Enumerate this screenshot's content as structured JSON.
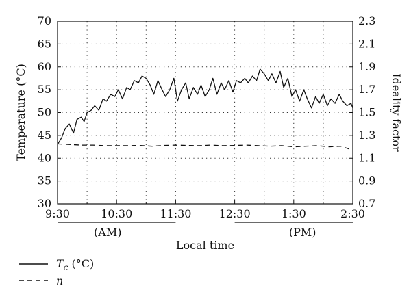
{
  "chart_data": {
    "type": "line",
    "xlabel": "Local time",
    "ylabel_left": "Temperature (°C)",
    "ylabel_right": "Ideality factor",
    "x_ticks": [
      "9:30",
      "10:30",
      "11:30",
      "12:30",
      "1:30",
      "2:30"
    ],
    "period_labels": [
      "(AM)",
      "(PM)"
    ],
    "ylim_left": [
      30,
      70
    ],
    "y_ticks_left": [
      "30",
      "35",
      "40",
      "45",
      "50",
      "55",
      "60",
      "65",
      "70"
    ],
    "ylim_right": [
      0.7,
      2.3
    ],
    "y_ticks_right": [
      "0.7",
      "0.9",
      "1.1",
      "1.3",
      "1.5",
      "1.7",
      "1.9",
      "2.1",
      "2.3"
    ],
    "grid": "dotted",
    "legend_position": "bottom-left",
    "x_unit": "hours after 9:30",
    "series": [
      {
        "name": "Tc (°C)",
        "axis": "left",
        "style": "solid",
        "x": [
          0,
          0.07,
          0.13,
          0.2,
          0.27,
          0.33,
          0.4,
          0.45,
          0.5,
          0.57,
          0.63,
          0.7,
          0.77,
          0.83,
          0.9,
          0.97,
          1.03,
          1.1,
          1.17,
          1.23,
          1.3,
          1.37,
          1.43,
          1.5,
          1.57,
          1.63,
          1.7,
          1.77,
          1.83,
          1.9,
          1.97,
          2.03,
          2.1,
          2.17,
          2.23,
          2.3,
          2.37,
          2.43,
          2.5,
          2.57,
          2.63,
          2.7,
          2.77,
          2.83,
          2.9,
          2.97,
          3.03,
          3.1,
          3.17,
          3.23,
          3.3,
          3.37,
          3.43,
          3.5,
          3.57,
          3.63,
          3.7,
          3.77,
          3.83,
          3.9,
          3.97,
          4.03,
          4.1,
          4.17,
          4.23,
          4.3,
          4.37,
          4.43,
          4.5,
          4.57,
          4.63,
          4.7,
          4.77,
          4.83,
          4.9,
          4.97,
          5.0
        ],
        "values": [
          43.0,
          44.5,
          46.5,
          47.5,
          45.5,
          48.5,
          49.0,
          48.0,
          50.0,
          50.5,
          51.5,
          50.5,
          53.0,
          52.5,
          54.0,
          53.5,
          55.0,
          53.0,
          55.5,
          55.0,
          57.0,
          56.5,
          58.0,
          57.5,
          56.0,
          54.0,
          57.0,
          55.0,
          53.5,
          55.0,
          57.5,
          52.5,
          55.0,
          56.5,
          53.0,
          55.5,
          54.0,
          56.0,
          53.5,
          55.0,
          57.5,
          54.0,
          56.5,
          55.0,
          57.0,
          54.5,
          57.0,
          56.5,
          57.5,
          56.5,
          58.0,
          57.0,
          59.5,
          58.5,
          57.0,
          58.5,
          56.5,
          59.0,
          55.5,
          57.5,
          53.5,
          55.0,
          52.5,
          55.0,
          53.0,
          51.0,
          53.5,
          52.0,
          54.0,
          51.5,
          53.0,
          52.0,
          54.0,
          52.5,
          51.5,
          52.0,
          51.0
        ]
      },
      {
        "name": "n",
        "axis": "right",
        "style": "dashed",
        "x": [
          0,
          0.2,
          0.4,
          0.6,
          0.8,
          1.0,
          1.2,
          1.4,
          1.6,
          1.8,
          2.0,
          2.2,
          2.4,
          2.6,
          2.8,
          3.0,
          3.2,
          3.4,
          3.6,
          3.8,
          4.0,
          4.2,
          4.4,
          4.6,
          4.8,
          5.0
        ],
        "values": [
          1.225,
          1.22,
          1.215,
          1.215,
          1.21,
          1.21,
          1.21,
          1.212,
          1.205,
          1.212,
          1.215,
          1.212,
          1.21,
          1.215,
          1.21,
          1.212,
          1.215,
          1.21,
          1.205,
          1.21,
          1.2,
          1.205,
          1.21,
          1.2,
          1.205,
          1.17
        ]
      }
    ]
  },
  "legend": {
    "tc_symbol": "T",
    "tc_subscript": "c",
    "tc_unit": " (°C)",
    "n_symbol": "n"
  }
}
